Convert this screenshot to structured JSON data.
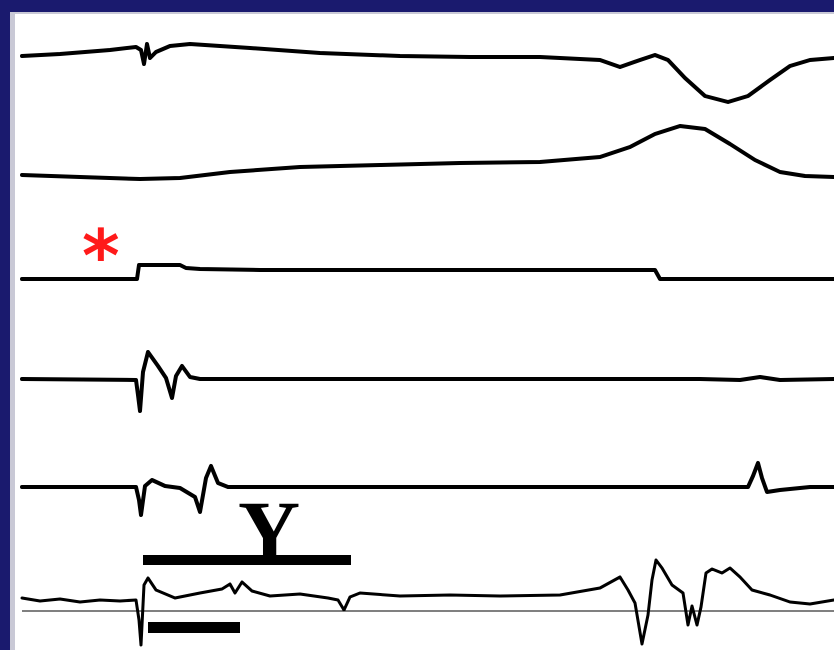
{
  "marker": {
    "glyph": "*",
    "color": "#ff1a1a"
  },
  "scale_label": "Y",
  "colors": {
    "background": "#1a1a6e",
    "panel": "#ffffff",
    "trace": "#000000",
    "bevel": "#c9c9d6"
  }
}
